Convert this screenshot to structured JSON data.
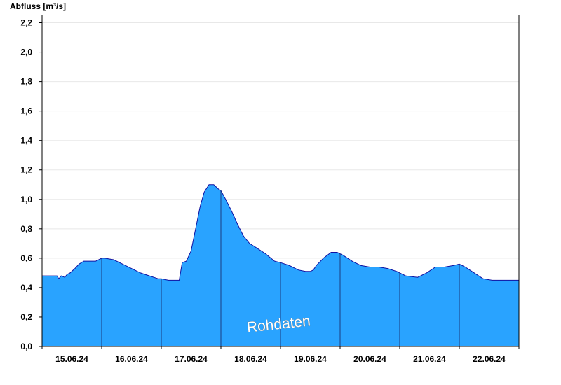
{
  "chart_data": {
    "type": "area",
    "ylabel": "Abfluss [m³/s]",
    "ylim": [
      0,
      2.25
    ],
    "yticks": [
      "0,0",
      "0,2",
      "0,4",
      "0,6",
      "0,8",
      "1,0",
      "1,2",
      "1,4",
      "1,6",
      "1,8",
      "2,0",
      "2,2"
    ],
    "xlim_days": [
      0,
      8
    ],
    "xlabels": [
      "15.06.24",
      "16.06.24",
      "17.06.24",
      "18.06.24",
      "19.06.24",
      "20.06.24",
      "21.06.24",
      "22.06.24"
    ],
    "grid": true,
    "fill_color": "#29a3ff",
    "line_color": "#1010a0",
    "annotation": "Rohdaten",
    "series": [
      {
        "x": [
          0.0,
          0.25,
          0.28,
          0.32,
          0.38,
          0.42,
          0.47,
          0.55,
          0.62,
          0.7,
          0.78,
          0.9,
          1.0,
          1.05,
          1.2,
          1.35,
          1.5,
          1.65,
          1.8,
          1.95,
          2.0,
          2.12,
          2.3,
          2.35,
          2.42,
          2.5,
          2.55,
          2.65,
          2.72,
          2.8,
          2.88,
          2.96,
          3.0,
          3.08,
          3.18,
          3.28,
          3.38,
          3.48,
          3.6,
          3.75,
          3.9,
          4.0,
          4.15,
          4.3,
          4.42,
          4.5,
          4.55,
          4.6,
          4.72,
          4.85,
          4.95,
          5.05,
          5.2,
          5.35,
          5.5,
          5.65,
          5.8,
          5.95,
          6.1,
          6.3,
          6.45,
          6.6,
          6.75,
          6.9,
          7.0,
          7.1,
          7.25,
          7.4,
          7.55,
          7.7,
          8.0
        ],
        "values": [
          0.48,
          0.48,
          0.46,
          0.48,
          0.47,
          0.49,
          0.5,
          0.53,
          0.56,
          0.58,
          0.58,
          0.58,
          0.6,
          0.6,
          0.59,
          0.56,
          0.53,
          0.5,
          0.48,
          0.46,
          0.46,
          0.45,
          0.45,
          0.57,
          0.58,
          0.65,
          0.75,
          0.95,
          1.05,
          1.1,
          1.1,
          1.07,
          1.06,
          1.0,
          0.92,
          0.83,
          0.75,
          0.7,
          0.67,
          0.63,
          0.58,
          0.57,
          0.55,
          0.52,
          0.51,
          0.51,
          0.52,
          0.55,
          0.6,
          0.64,
          0.64,
          0.62,
          0.58,
          0.55,
          0.54,
          0.54,
          0.53,
          0.51,
          0.48,
          0.47,
          0.5,
          0.54,
          0.54,
          0.55,
          0.56,
          0.54,
          0.5,
          0.46,
          0.45,
          0.45,
          0.45
        ]
      }
    ]
  }
}
